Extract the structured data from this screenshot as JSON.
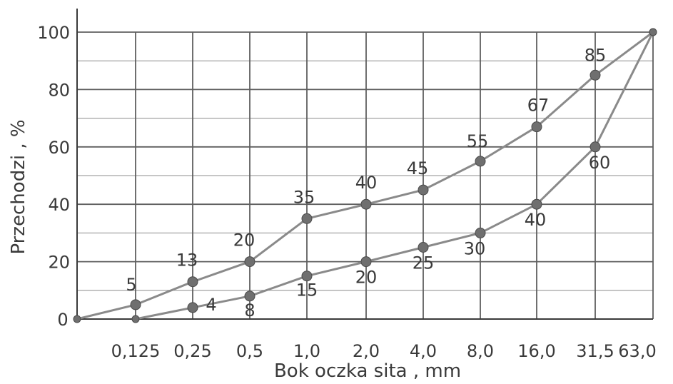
{
  "chart_data": {
    "type": "line",
    "xlabel": "Bok oczka sita , mm",
    "ylabel": "Przechodzi , %",
    "x_origin_label": "0",
    "categories": [
      "0,125",
      "0,25",
      "0,5",
      "1,0",
      "2,0",
      "4,0",
      "8,0",
      "16,0",
      "31,5",
      "63,0"
    ],
    "y_ticks": [
      "0",
      "20",
      "40",
      "60",
      "80",
      "100"
    ],
    "ylim": [
      0,
      100
    ],
    "grid": true,
    "series": [
      {
        "points": [
          {
            "x": "0",
            "y": 0
          },
          {
            "x": "0,125",
            "y": 5,
            "label": "5"
          },
          {
            "x": "0,25",
            "y": 13,
            "label": "13"
          },
          {
            "x": "0,5",
            "y": 20,
            "label": "20"
          },
          {
            "x": "1,0",
            "y": 35,
            "label": "35"
          },
          {
            "x": "2,0",
            "y": 40,
            "label": "40"
          },
          {
            "x": "4,0",
            "y": 45,
            "label": "45"
          },
          {
            "x": "8,0",
            "y": 55,
            "label": "55"
          },
          {
            "x": "16,0",
            "y": 67,
            "label": "67"
          },
          {
            "x": "31,5",
            "y": 85,
            "label": "85"
          },
          {
            "x": "63,0",
            "y": 100
          }
        ]
      },
      {
        "points": [
          {
            "x": "0,125",
            "y": 0
          },
          {
            "x": "0,25",
            "y": 4,
            "label": "4"
          },
          {
            "x": "0,5",
            "y": 8,
            "label": "8"
          },
          {
            "x": "1,0",
            "y": 15,
            "label": "15"
          },
          {
            "x": "2,0",
            "y": 20,
            "label": "20"
          },
          {
            "x": "4,0",
            "y": 25,
            "label": "25"
          },
          {
            "x": "8,0",
            "y": 30,
            "label": "30"
          },
          {
            "x": "16,0",
            "y": 40,
            "label": "40"
          },
          {
            "x": "31,5",
            "y": 60,
            "label": "60"
          },
          {
            "x": "63,0",
            "y": 100
          }
        ]
      }
    ],
    "colors": {
      "line": "#8a8a8a",
      "marker": "#6f6f6f",
      "grid": "#8c8c8c",
      "text": "#3a3a3a"
    }
  }
}
